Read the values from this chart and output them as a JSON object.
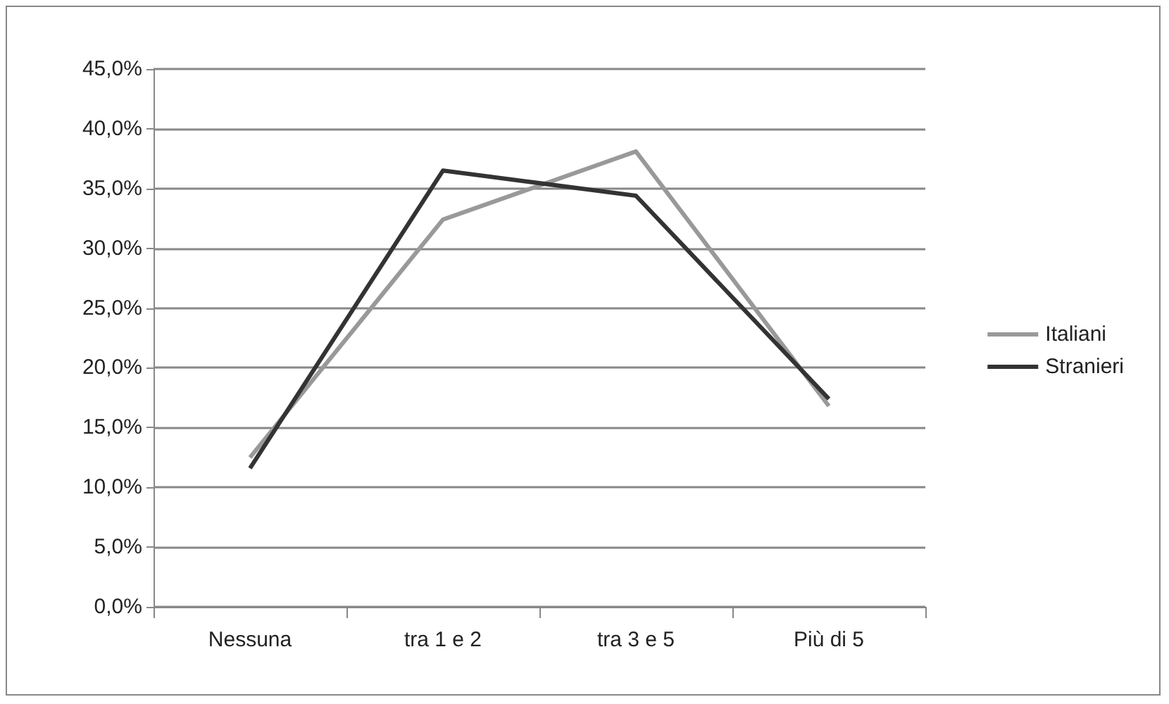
{
  "chart_data": {
    "type": "line",
    "categories": [
      "Nessuna",
      "tra 1 e 2",
      "tra 3 e 5",
      "Più di 5"
    ],
    "series": [
      {
        "name": "Italiani",
        "color": "#999999",
        "values": [
          12.5,
          32.4,
          38.1,
          16.8
        ]
      },
      {
        "name": "Stranieri",
        "color": "#333333",
        "values": [
          11.6,
          36.5,
          34.4,
          17.4
        ]
      }
    ],
    "ylim": [
      0,
      45
    ],
    "yticks": [
      {
        "value": 0,
        "label": "0,0%"
      },
      {
        "value": 5,
        "label": "5,0%"
      },
      {
        "value": 10,
        "label": "10,0%"
      },
      {
        "value": 15,
        "label": "15,0%"
      },
      {
        "value": 20,
        "label": "20,0%"
      },
      {
        "value": 25,
        "label": "25,0%"
      },
      {
        "value": 30,
        "label": "30,0%"
      },
      {
        "value": 35,
        "label": "35,0%"
      },
      {
        "value": 40,
        "label": "40,0%"
      },
      {
        "value": 45,
        "label": "45,0%"
      }
    ],
    "grid": "y",
    "legend": "right",
    "marker": "none",
    "line_style": "solid"
  }
}
